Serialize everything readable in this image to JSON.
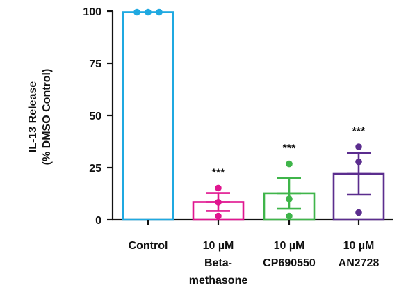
{
  "chart_data": {
    "type": "bar",
    "ylabel_lines": [
      "IL-13 Release",
      "(% DMSO Control)"
    ],
    "ylim": [
      0,
      100
    ],
    "yticks": [
      "0",
      "25",
      "50",
      "75",
      "100"
    ],
    "categories": [
      {
        "label_lines": [
          "Control"
        ],
        "color": "#1fa9e1",
        "mean": 99.5,
        "sem_upper": 99.5,
        "sem_lower": 99.5,
        "points": [
          99.5,
          99.5,
          99.5
        ],
        "sig": ""
      },
      {
        "label_lines": [
          "10 µM",
          "Beta-",
          "methasone"
        ],
        "color": "#e0158f",
        "mean": 8.5,
        "sem_upper": 12.8,
        "sem_lower": 4.2,
        "points": [
          15.2,
          8.4,
          1.8
        ],
        "sig": "***"
      },
      {
        "label_lines": [
          "10 µM",
          "CP690550"
        ],
        "color": "#3fb54a",
        "mean": 12.7,
        "sem_upper": 20.0,
        "sem_lower": 5.3,
        "points": [
          26.8,
          10.0,
          1.8
        ],
        "sig": "***"
      },
      {
        "label_lines": [
          "10 µM",
          "AN2728"
        ],
        "color": "#5b2d8e",
        "mean": 22.0,
        "sem_upper": 32.0,
        "sem_lower": 12.0,
        "points": [
          35.0,
          27.8,
          3.5
        ],
        "sig": "***"
      }
    ]
  }
}
